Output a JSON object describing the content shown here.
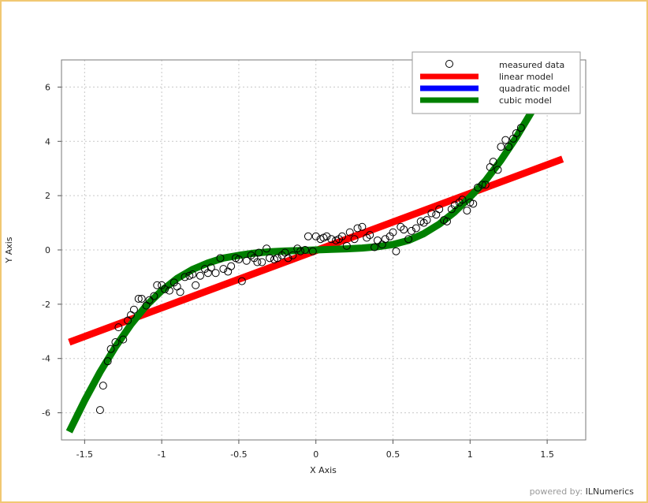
{
  "chart_data": {
    "type": "scatter",
    "xlabel": "X Axis",
    "ylabel": "Y Axis",
    "xlim": [
      -1.65,
      1.75
    ],
    "ylim": [
      -7,
      7
    ],
    "xticks": [
      -1.5,
      -1,
      -0.5,
      0,
      0.5,
      1,
      1.5
    ],
    "xtick_labels": [
      "-1.5",
      "-1",
      "-0.5",
      "0",
      "0.5",
      "1",
      "1.5"
    ],
    "yticks": [
      -6,
      -4,
      -2,
      0,
      2,
      4,
      6
    ],
    "ytick_labels": [
      "-6",
      "-4",
      "-2",
      "0",
      "2",
      "4",
      "6"
    ],
    "grid": true,
    "legend_position": "top-right",
    "series": [
      {
        "name": "measured data",
        "kind": "scatter",
        "marker": "open-circle",
        "color": "#000000",
        "x": [
          -1.4,
          -1.38,
          -1.35,
          -1.33,
          -1.3,
          -1.28,
          -1.25,
          -1.22,
          -1.2,
          -1.18,
          -1.15,
          -1.13,
          -1.1,
          -1.08,
          -1.05,
          -1.03,
          -1.0,
          -0.98,
          -0.95,
          -0.92,
          -0.9,
          -0.88,
          -0.85,
          -0.82,
          -0.8,
          -0.78,
          -0.75,
          -0.72,
          -0.7,
          -0.68,
          -0.65,
          -0.62,
          -0.6,
          -0.57,
          -0.55,
          -0.52,
          -0.5,
          -0.48,
          -0.45,
          -0.42,
          -0.4,
          -0.38,
          -0.37,
          -0.35,
          -0.32,
          -0.3,
          -0.27,
          -0.25,
          -0.22,
          -0.2,
          -0.18,
          -0.15,
          -0.12,
          -0.1,
          -0.07,
          -0.05,
          -0.02,
          0.0,
          0.03,
          0.05,
          0.07,
          0.1,
          0.13,
          0.15,
          0.17,
          0.2,
          0.22,
          0.25,
          0.27,
          0.3,
          0.33,
          0.35,
          0.38,
          0.4,
          0.43,
          0.45,
          0.48,
          0.5,
          0.52,
          0.55,
          0.57,
          0.6,
          0.62,
          0.65,
          0.68,
          0.7,
          0.72,
          0.75,
          0.78,
          0.8,
          0.83,
          0.85,
          0.88,
          0.9,
          0.93,
          0.95,
          0.98,
          1.0,
          1.02,
          1.05,
          1.08,
          1.1,
          1.13,
          1.15,
          1.18,
          1.2,
          1.23,
          1.25,
          1.28,
          1.3,
          1.33
        ],
        "y": [
          -5.9,
          -5.0,
          -4.1,
          -3.65,
          -3.4,
          -2.85,
          -3.3,
          -2.6,
          -2.4,
          -2.2,
          -1.8,
          -1.8,
          -2.05,
          -1.85,
          -1.7,
          -1.3,
          -1.3,
          -1.45,
          -1.5,
          -1.2,
          -1.35,
          -1.55,
          -1.0,
          -0.95,
          -0.9,
          -1.3,
          -0.95,
          -0.7,
          -0.85,
          -0.65,
          -0.85,
          -0.3,
          -0.7,
          -0.8,
          -0.6,
          -0.3,
          -0.35,
          -1.15,
          -0.4,
          -0.2,
          -0.3,
          -0.45,
          -0.1,
          -0.45,
          0.05,
          -0.3,
          -0.35,
          -0.3,
          -0.2,
          -0.1,
          -0.3,
          -0.2,
          0.05,
          -0.05,
          0.0,
          0.5,
          -0.05,
          0.5,
          0.4,
          0.45,
          0.5,
          0.4,
          0.35,
          0.4,
          0.5,
          0.15,
          0.65,
          0.4,
          0.8,
          0.85,
          0.45,
          0.55,
          0.1,
          0.35,
          0.2,
          0.4,
          0.5,
          0.65,
          -0.05,
          0.85,
          0.75,
          0.4,
          0.7,
          0.8,
          1.05,
          1.0,
          1.1,
          1.35,
          1.3,
          1.5,
          1.1,
          1.05,
          1.5,
          1.65,
          1.75,
          1.85,
          1.45,
          1.75,
          1.7,
          2.3,
          2.4,
          2.4,
          3.05,
          3.25,
          2.95,
          3.8,
          4.05,
          3.8,
          4.1,
          4.3,
          4.5
        ]
      },
      {
        "name": "linear model",
        "kind": "line",
        "color": "#ff0000",
        "x": [
          -1.6,
          1.6
        ],
        "y": [
          -3.4,
          3.35
        ]
      },
      {
        "name": "quadratic model",
        "kind": "line",
        "color": "#0000ff",
        "hidden_under": "cubic model",
        "x": [],
        "y": []
      },
      {
        "name": "cubic model",
        "kind": "line",
        "color": "#008000",
        "x": [
          -1.6,
          -1.5,
          -1.4,
          -1.3,
          -1.2,
          -1.1,
          -1.0,
          -0.9,
          -0.8,
          -0.7,
          -0.6,
          -0.5,
          -0.4,
          -0.3,
          -0.2,
          -0.1,
          0.0,
          0.1,
          0.2,
          0.3,
          0.4,
          0.5,
          0.6,
          0.7,
          0.8,
          0.9,
          1.0,
          1.1,
          1.2,
          1.3,
          1.4,
          1.5
        ],
        "y": [
          -6.7,
          -5.55,
          -4.5,
          -3.57,
          -2.75,
          -2.05,
          -1.5,
          -1.05,
          -0.72,
          -0.48,
          -0.3,
          -0.2,
          -0.12,
          -0.07,
          -0.04,
          -0.02,
          0.0,
          0.02,
          0.04,
          0.07,
          0.12,
          0.2,
          0.35,
          0.6,
          0.95,
          1.4,
          1.95,
          2.55,
          3.3,
          4.15,
          5.1,
          6.3
        ]
      }
    ]
  },
  "footer": {
    "powered_label": "powered by:",
    "brand": "ILNumerics"
  }
}
